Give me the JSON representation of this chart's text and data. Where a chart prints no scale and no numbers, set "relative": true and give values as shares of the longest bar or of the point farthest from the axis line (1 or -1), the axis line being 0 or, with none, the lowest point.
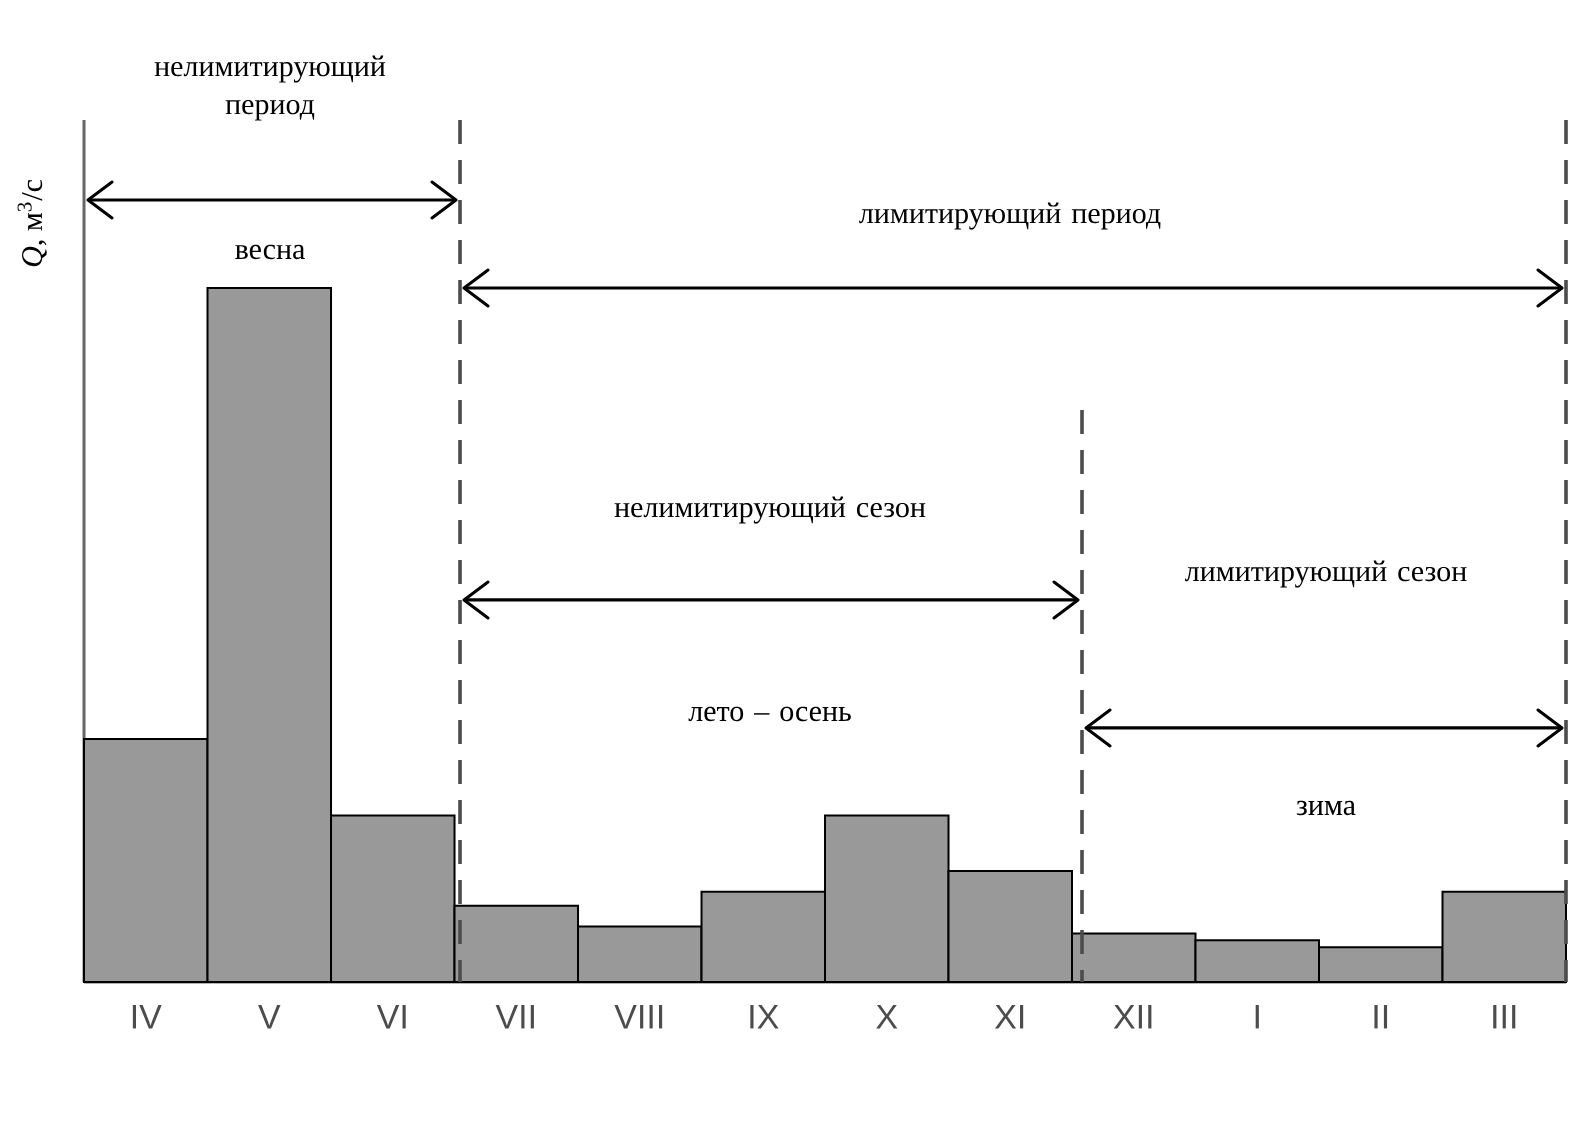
{
  "chart_data": {
    "type": "bar",
    "relative": true,
    "ylabel": "*Q*, м$^{3}$/с",
    "categories": [
      "IV",
      "V",
      "VI",
      "VII",
      "VIII",
      "IX",
      "X",
      "XI",
      "XII",
      "I",
      "II",
      "III"
    ],
    "values": [
      0.35,
      1.0,
      0.24,
      0.11,
      0.08,
      0.13,
      0.24,
      0.16,
      0.07,
      0.06,
      0.05,
      0.13
    ],
    "color": "#999999",
    "annotations": [
      "нелимитирующий период",
      "весна",
      "лимитирующий период",
      "нелимитирующий сезон",
      "лето – осень",
      "лимитирующий сезон",
      "зима"
    ]
  }
}
